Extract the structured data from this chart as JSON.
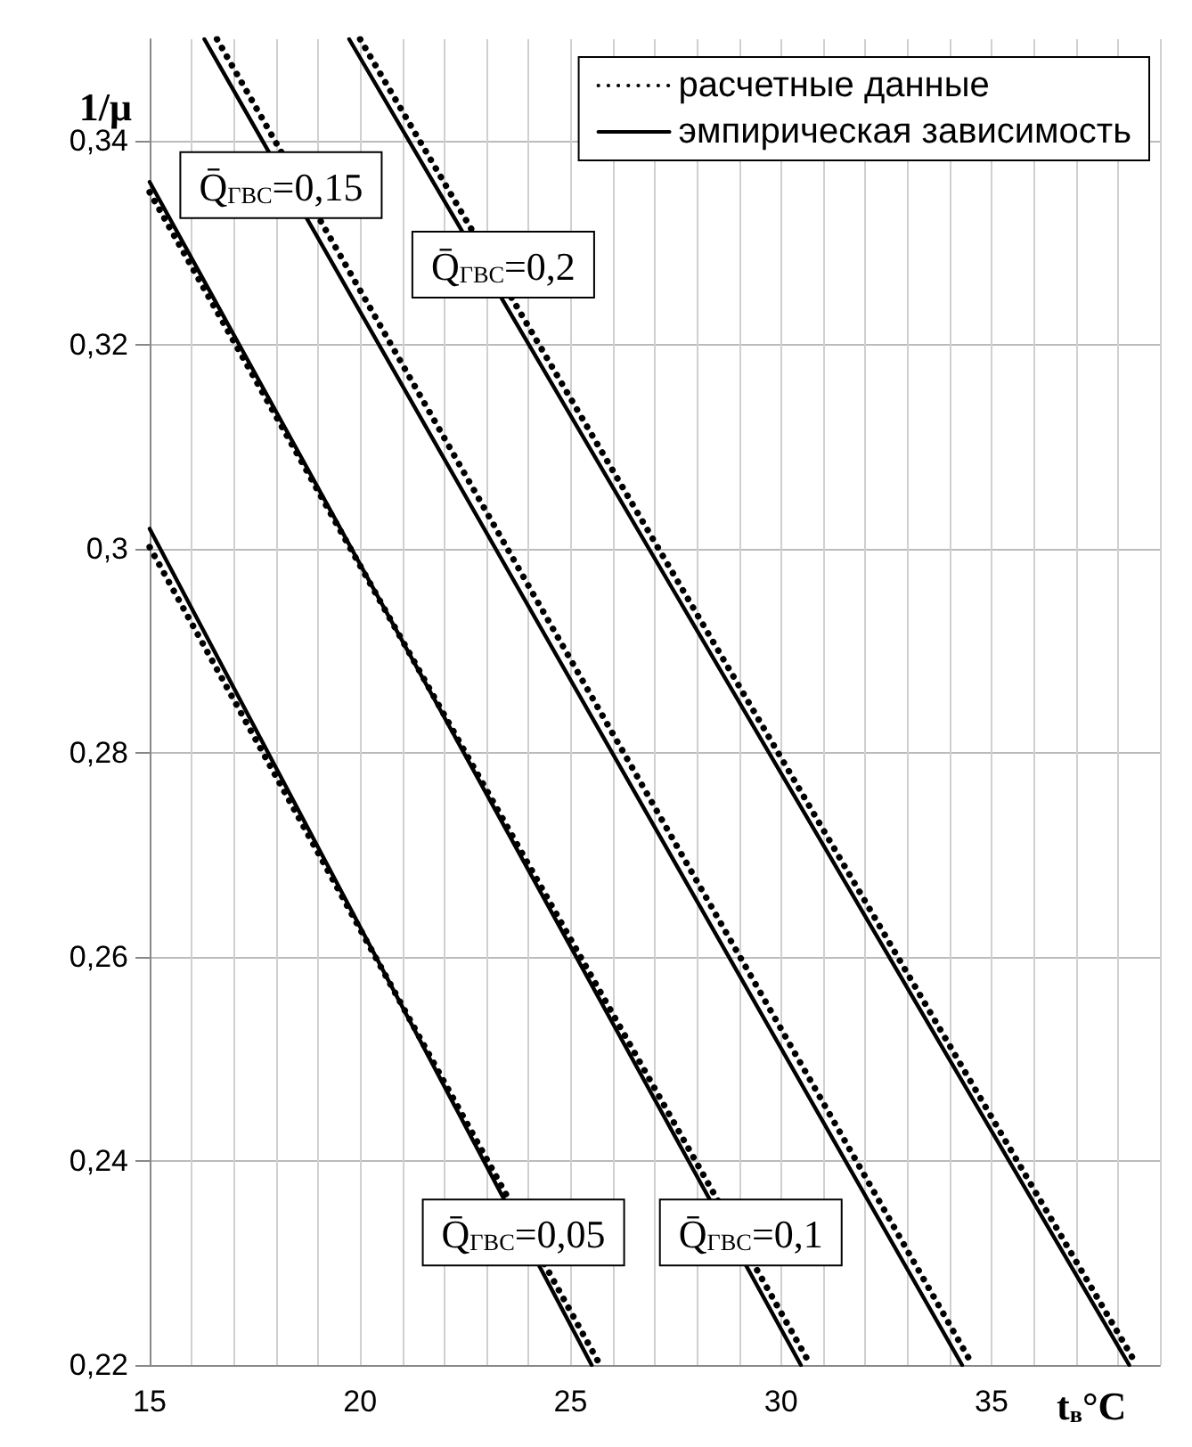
{
  "chart_data": {
    "type": "line",
    "xlabel": "t$_{в}$°C",
    "ylabel": "1/μ",
    "xlim": [
      15,
      39
    ],
    "ylim": [
      0.22,
      0.35
    ],
    "xticks": [
      15,
      {
        "value": 16,
        "label": null
      },
      {
        "value": 17,
        "label": null
      },
      {
        "value": 18,
        "label": null
      },
      {
        "value": 19,
        "label": null
      },
      20,
      {
        "value": 21,
        "label": null
      },
      {
        "value": 22,
        "label": null
      },
      {
        "value": 23,
        "label": null
      },
      {
        "value": 24,
        "label": null
      },
      25,
      {
        "value": 26,
        "label": null
      },
      {
        "value": 27,
        "label": null
      },
      {
        "value": 28,
        "label": null
      },
      {
        "value": 29,
        "label": null
      },
      30,
      {
        "value": 31,
        "label": null
      },
      {
        "value": 32,
        "label": null
      },
      {
        "value": 33,
        "label": null
      },
      {
        "value": 34,
        "label": null
      },
      35,
      {
        "value": 36,
        "label": null
      },
      {
        "value": 37,
        "label": null
      },
      {
        "value": 38,
        "label": null
      },
      {
        "value": 39,
        "label": null
      }
    ],
    "yticks": [
      {
        "value": 0.22,
        "label": "0,22"
      },
      {
        "value": 0.24,
        "label": "0,24"
      },
      {
        "value": 0.26,
        "label": "0,26"
      },
      {
        "value": 0.28,
        "label": "0,28"
      },
      {
        "value": 0.3,
        "label": "0,3"
      },
      {
        "value": 0.32,
        "label": "0,32"
      },
      {
        "value": 0.34,
        "label": "0,34"
      }
    ],
    "grid": true,
    "legend": "top right",
    "marker": "none",
    "series": [
      {
        "name": "расчетные данные",
        "color": "#000000",
        "line_style": "dotted",
        "x": [
          15,
          25.7
        ],
        "values": [
          0.3002,
          0.22
        ]
      },
      {
        "name": "эмпирическая зависимость",
        "color": "#000000",
        "line_style": "solid",
        "x": [
          15,
          25.5
        ],
        "values": [
          0.302,
          0.22
        ]
      },
      {
        "color": "#000000",
        "line_style": "dotted",
        "x": [
          15,
          30.7
        ],
        "values": [
          0.335,
          0.22
        ]
      },
      {
        "color": "#000000",
        "line_style": "solid",
        "x": [
          15,
          30.47
        ],
        "values": [
          0.336,
          0.22
        ]
      },
      {
        "color": "#000000",
        "line_style": "dotted",
        "x": [
          16.6,
          34.55
        ],
        "values": [
          0.35,
          0.22
        ]
      },
      {
        "color": "#000000",
        "line_style": "solid",
        "x": [
          16.3,
          34.3
        ],
        "values": [
          0.35,
          0.22
        ]
      },
      {
        "color": "#000000",
        "line_style": "dotted",
        "x": [
          20.0,
          38.45
        ],
        "values": [
          0.35,
          0.22
        ]
      },
      {
        "color": "#000000",
        "line_style": "solid",
        "x": [
          19.74,
          38.27
        ],
        "values": [
          0.35,
          0.22
        ]
      }
    ],
    "annotations": [
      "Q̄$_{ГВС}$=0,15",
      "Q̄$_{ГВС}$=0,2",
      "Q̄$_{ГВС}$=0,05",
      "Q̄$_{ГВС}$=0,1"
    ]
  }
}
